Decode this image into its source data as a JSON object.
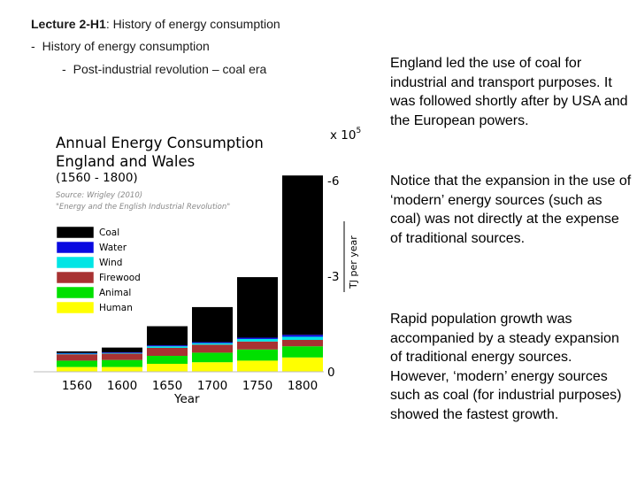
{
  "header": {
    "lecture_bold": "Lecture 2-H1",
    "lecture_rest": ": History of energy consumption",
    "bullet_1": "History of energy consumption",
    "bullet_2": "Post-industrial revolution – coal era"
  },
  "paragraphs": [
    "England led the use of coal for industrial and transport purposes. It was followed shortly after by USA and the European powers.",
    "Notice that the expansion in the use of ‘modern’ energy sources (such as coal) was not directly at the expense of traditional sources.",
    "Rapid population growth was accompanied by a steady expansion of traditional energy sources. However, ‘modern’ energy  sources such as coal (for industrial purposes) showed the fastest growth."
  ],
  "chart_data": {
    "type": "bar",
    "stacked": true,
    "title": "Annual Energy Consumption",
    "title_line2": "England and Wales",
    "subtitle": "(1560 - 1800)",
    "source_line1": "Source: Wrigley (2010)",
    "source_line2": "\"Energy and the English Industrial Revolution\"",
    "scale_base": "x 10",
    "scale_exp": "5",
    "ylabel": "TJ per year",
    "ylim": [
      0,
      6.6
    ],
    "yticks": [
      {
        "value": 6,
        "label": "-6"
      },
      {
        "value": 3,
        "label": "-3"
      },
      {
        "value": 0,
        "label": "0"
      }
    ],
    "categories": [
      "1560",
      "1600",
      "1650",
      "1700",
      "1750",
      "1800"
    ],
    "series": [
      {
        "name": "Human",
        "color": "#ffff00",
        "values": [
          0.15,
          0.15,
          0.25,
          0.3,
          0.35,
          0.45
        ]
      },
      {
        "name": "Animal",
        "color": "#00e000",
        "values": [
          0.2,
          0.22,
          0.25,
          0.3,
          0.35,
          0.35
        ]
      },
      {
        "name": "Firewood",
        "color": "#a83232",
        "values": [
          0.2,
          0.2,
          0.25,
          0.25,
          0.25,
          0.2
        ]
      },
      {
        "name": "Wind",
        "color": "#00e5e5",
        "values": [
          0.02,
          0.02,
          0.05,
          0.05,
          0.08,
          0.1
        ]
      },
      {
        "name": "Water",
        "color": "#0a0ae0",
        "values": [
          0.02,
          0.02,
          0.03,
          0.03,
          0.04,
          0.06
        ]
      },
      {
        "name": "Coal",
        "color": "#000000",
        "values": [
          0.05,
          0.15,
          0.6,
          1.1,
          1.9,
          5.0
        ]
      }
    ],
    "legend_order": [
      "Coal",
      "Water",
      "Wind",
      "Firewood",
      "Animal",
      "Human"
    ]
  }
}
